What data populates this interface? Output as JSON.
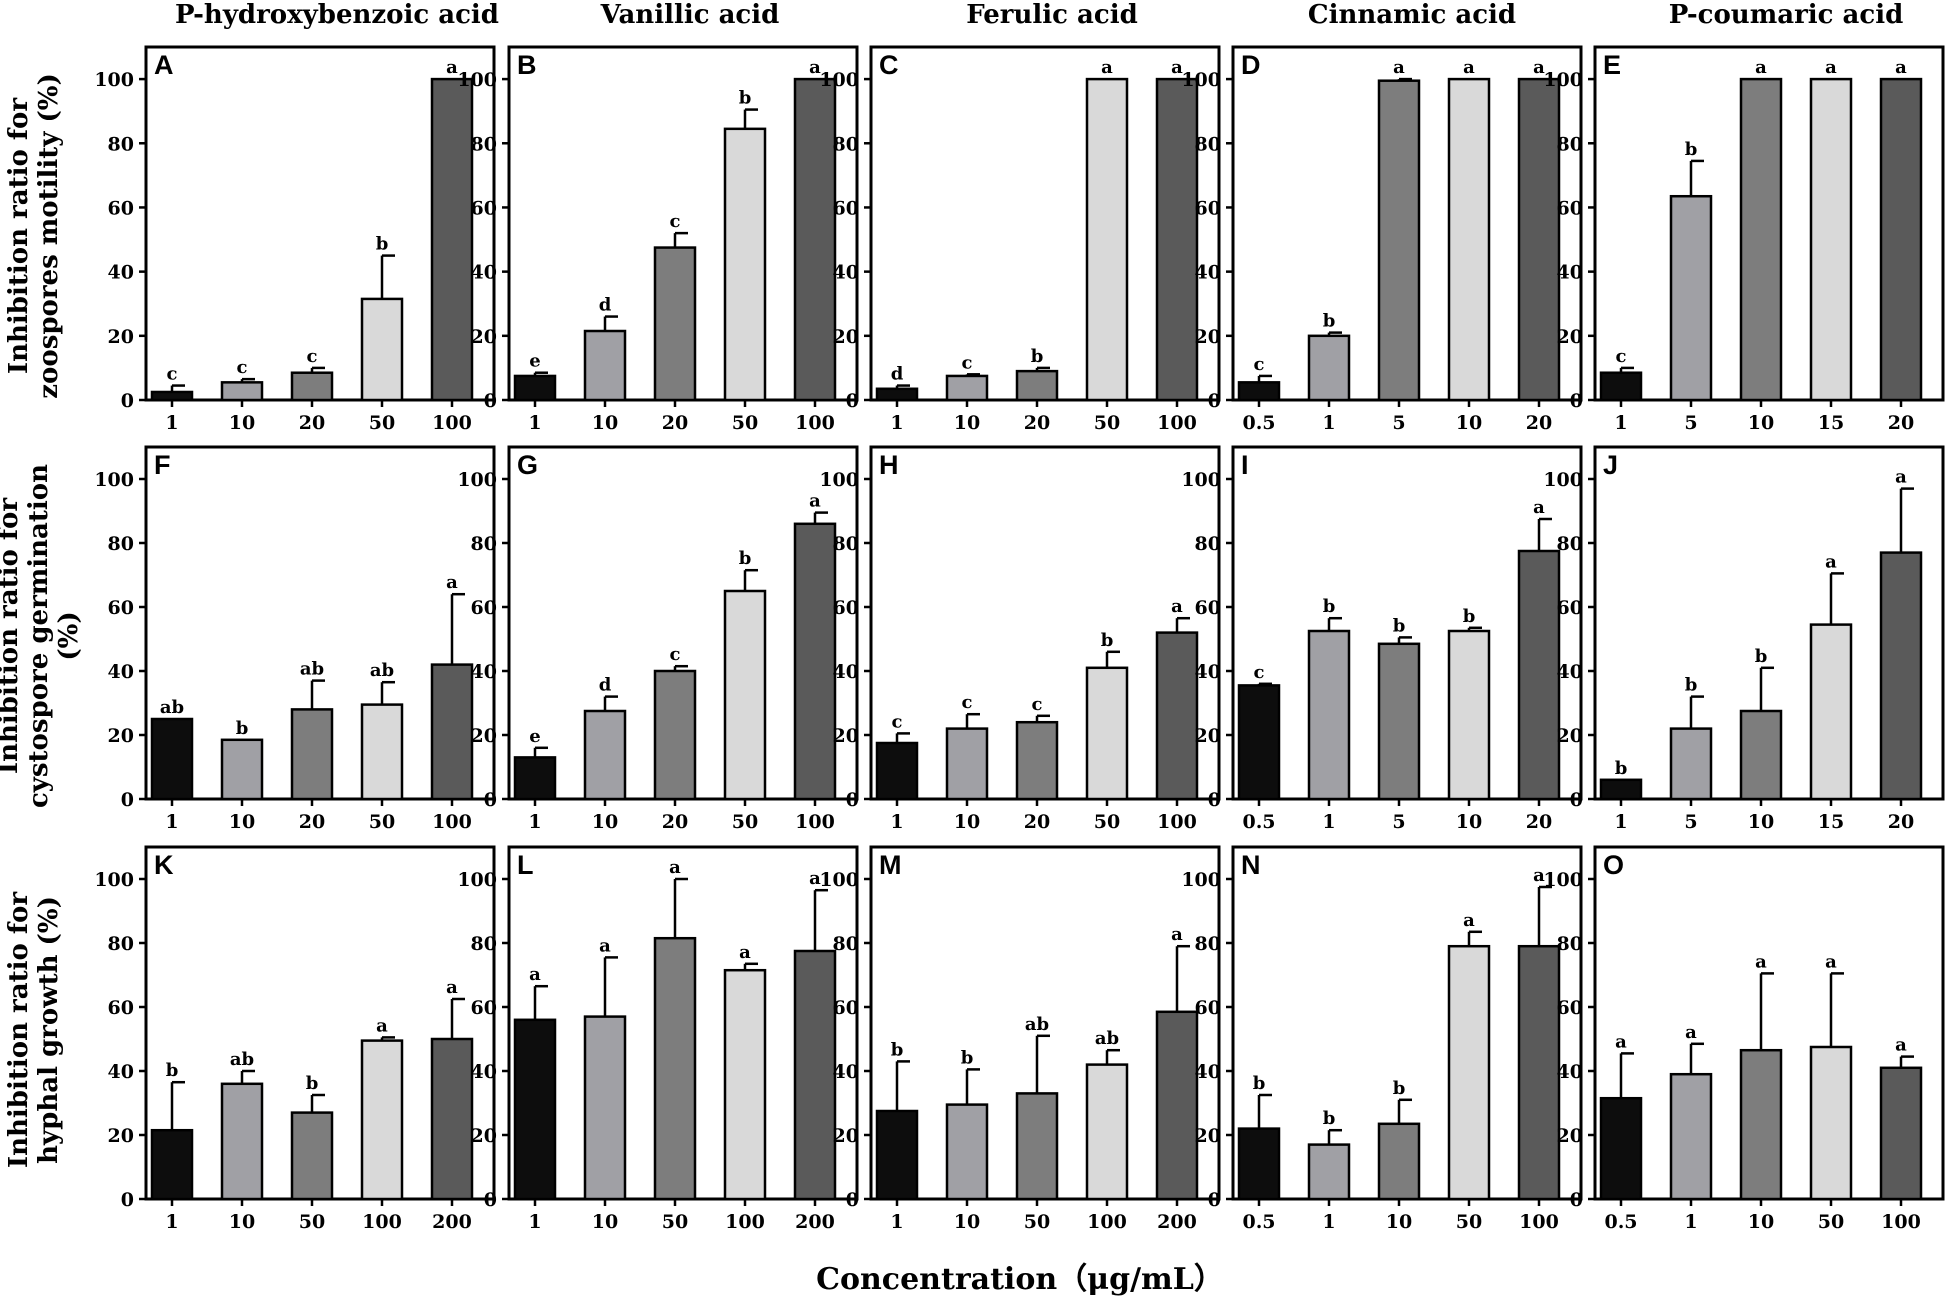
{
  "figure": {
    "x_axis_label": "Concentration（μg/mL）",
    "column_titles": [
      "P-hydroxybenzoic acid",
      "Vanillic acid",
      "Ferulic acid",
      "Cinnamic acid",
      "P-coumaric acid"
    ],
    "row_labels": [
      [
        "Inhibition ratio for",
        "zoospores motility (%)"
      ],
      [
        "Inhibition ratio for",
        "cystospore germination",
        "(%)"
      ],
      [
        "Inhibition ratio for",
        "hyphal growth (%)"
      ]
    ]
  },
  "colors": {
    "bar_fills": [
      "#0d0d0d",
      "#a0a0a5",
      "#7d7d7d",
      "#d9d9d9",
      "#5a5a5a"
    ],
    "axis": "#000000"
  },
  "chart_data": [
    {
      "panel": "A",
      "type": "bar",
      "compound": "P-hydroxybenzoic acid",
      "categories": [
        "1",
        "10",
        "20",
        "50",
        "100"
      ],
      "values": [
        2.5,
        5.5,
        8.5,
        31.5,
        100
      ],
      "errors": [
        2.0,
        1.0,
        1.5,
        13.5,
        0
      ],
      "letters": [
        "c",
        "c",
        "c",
        "b",
        "a"
      ],
      "ylim": [
        0,
        110
      ],
      "yticks": [
        0,
        20,
        40,
        60,
        80,
        100
      ]
    },
    {
      "panel": "B",
      "type": "bar",
      "compound": "Vanillic acid",
      "categories": [
        "1",
        "10",
        "20",
        "50",
        "100"
      ],
      "values": [
        7.5,
        21.5,
        47.5,
        84.5,
        100
      ],
      "errors": [
        1.0,
        4.5,
        4.5,
        6.0,
        0
      ],
      "letters": [
        "e",
        "d",
        "c",
        "b",
        "a"
      ],
      "ylim": [
        0,
        110
      ],
      "yticks": [
        0,
        20,
        40,
        60,
        80,
        100
      ]
    },
    {
      "panel": "C",
      "type": "bar",
      "compound": "Ferulic acid",
      "categories": [
        "1",
        "10",
        "20",
        "50",
        "100"
      ],
      "values": [
        3.5,
        7.5,
        9.0,
        100,
        100
      ],
      "errors": [
        1.0,
        0.5,
        1.0,
        0,
        0
      ],
      "letters": [
        "d",
        "c",
        "b",
        "a",
        "a"
      ],
      "ylim": [
        0,
        110
      ],
      "yticks": [
        0,
        20,
        40,
        60,
        80,
        100
      ]
    },
    {
      "panel": "D",
      "type": "bar",
      "compound": "Cinnamic acid",
      "categories": [
        "0.5",
        "1",
        "5",
        "10",
        "20"
      ],
      "values": [
        5.5,
        20.0,
        99.5,
        100,
        100
      ],
      "errors": [
        2.0,
        1.0,
        0.5,
        0,
        0
      ],
      "letters": [
        "c",
        "b",
        "a",
        "a",
        "a"
      ],
      "ylim": [
        0,
        110
      ],
      "yticks": [
        0,
        20,
        40,
        60,
        80,
        100
      ]
    },
    {
      "panel": "E",
      "type": "bar",
      "compound": "P-coumaric acid",
      "categories": [
        "1",
        "5",
        "10",
        "15",
        "20"
      ],
      "values": [
        8.5,
        63.5,
        100,
        100,
        100
      ],
      "errors": [
        1.5,
        11.0,
        0,
        0,
        0
      ],
      "letters": [
        "c",
        "b",
        "a",
        "a",
        "a"
      ],
      "ylim": [
        0,
        110
      ],
      "yticks": [
        0,
        20,
        40,
        60,
        80,
        100
      ]
    },
    {
      "panel": "F",
      "type": "bar",
      "compound": "P-hydroxybenzoic acid",
      "categories": [
        "1",
        "10",
        "20",
        "50",
        "100"
      ],
      "values": [
        25.0,
        18.5,
        28.0,
        29.5,
        42.0
      ],
      "errors": [
        0,
        0,
        9.0,
        7.0,
        22.0
      ],
      "letters": [
        "ab",
        "b",
        "ab",
        "ab",
        "a"
      ],
      "ylim": [
        0,
        110
      ],
      "yticks": [
        0,
        20,
        40,
        60,
        80,
        100
      ]
    },
    {
      "panel": "G",
      "type": "bar",
      "compound": "Vanillic acid",
      "categories": [
        "1",
        "10",
        "20",
        "50",
        "100"
      ],
      "values": [
        13.0,
        27.5,
        40.0,
        65.0,
        86.0
      ],
      "errors": [
        3.0,
        4.5,
        1.5,
        6.5,
        3.5
      ],
      "letters": [
        "e",
        "d",
        "c",
        "b",
        "a"
      ],
      "ylim": [
        0,
        110
      ],
      "yticks": [
        0,
        20,
        40,
        60,
        80,
        100
      ]
    },
    {
      "panel": "H",
      "type": "bar",
      "compound": "Ferulic acid",
      "categories": [
        "1",
        "10",
        "20",
        "50",
        "100"
      ],
      "values": [
        17.5,
        22.0,
        24.0,
        41.0,
        52.0
      ],
      "errors": [
        3.0,
        4.5,
        2.0,
        5.0,
        4.5
      ],
      "letters": [
        "c",
        "c",
        "c",
        "b",
        "a"
      ],
      "ylim": [
        0,
        110
      ],
      "yticks": [
        0,
        20,
        40,
        60,
        80,
        100
      ]
    },
    {
      "panel": "I",
      "type": "bar",
      "compound": "Cinnamic acid",
      "categories": [
        "0.5",
        "1",
        "5",
        "10",
        "20"
      ],
      "values": [
        35.5,
        52.5,
        48.5,
        52.5,
        77.5
      ],
      "errors": [
        0.5,
        4.0,
        2.0,
        1.0,
        10.0
      ],
      "letters": [
        "c",
        "b",
        "b",
        "b",
        "a"
      ],
      "ylim": [
        0,
        110
      ],
      "yticks": [
        0,
        20,
        40,
        60,
        80,
        100
      ]
    },
    {
      "panel": "J",
      "type": "bar",
      "compound": "P-coumaric acid",
      "categories": [
        "1",
        "5",
        "10",
        "15",
        "20"
      ],
      "values": [
        6.0,
        22.0,
        27.5,
        54.5,
        77.0
      ],
      "errors": [
        0,
        10.0,
        13.5,
        16.0,
        20.0
      ],
      "letters": [
        "b",
        "b",
        "b",
        "a",
        "a"
      ],
      "ylim": [
        0,
        110
      ],
      "yticks": [
        0,
        20,
        40,
        60,
        80,
        100
      ]
    },
    {
      "panel": "K",
      "type": "bar",
      "compound": "P-hydroxybenzoic acid",
      "categories": [
        "1",
        "10",
        "50",
        "100",
        "200"
      ],
      "values": [
        21.5,
        36.0,
        27.0,
        49.5,
        50.0
      ],
      "errors": [
        15.0,
        4.0,
        5.5,
        1.0,
        12.5
      ],
      "letters": [
        "b",
        "ab",
        "b",
        "a",
        "a"
      ],
      "ylim": [
        0,
        110
      ],
      "yticks": [
        0,
        20,
        40,
        60,
        80,
        100
      ]
    },
    {
      "panel": "L",
      "type": "bar",
      "compound": "Vanillic acid",
      "categories": [
        "1",
        "10",
        "50",
        "100",
        "200"
      ],
      "values": [
        56.0,
        57.0,
        81.5,
        71.5,
        77.5
      ],
      "errors": [
        10.5,
        18.5,
        18.5,
        2.0,
        19.0
      ],
      "letters": [
        "a",
        "a",
        "a",
        "a",
        "a"
      ],
      "ylim": [
        0,
        110
      ],
      "yticks": [
        0,
        20,
        40,
        60,
        80,
        100
      ]
    },
    {
      "panel": "M",
      "type": "bar",
      "compound": "Ferulic acid",
      "categories": [
        "1",
        "10",
        "50",
        "100",
        "200"
      ],
      "values": [
        27.5,
        29.5,
        33.0,
        42.0,
        58.5
      ],
      "errors": [
        15.5,
        11.0,
        18.0,
        4.5,
        20.5
      ],
      "letters": [
        "b",
        "b",
        "ab",
        "ab",
        "a"
      ],
      "ylim": [
        0,
        110
      ],
      "yticks": [
        0,
        20,
        40,
        60,
        80,
        100
      ]
    },
    {
      "panel": "N",
      "type": "bar",
      "compound": "Cinnamic acid",
      "categories": [
        "0.5",
        "1",
        "10",
        "50",
        "100"
      ],
      "values": [
        22.0,
        17.0,
        23.5,
        79.0,
        79.0
      ],
      "errors": [
        10.5,
        4.5,
        7.5,
        4.5,
        18.5
      ],
      "letters": [
        "b",
        "b",
        "b",
        "a",
        "a"
      ],
      "ylim": [
        0,
        110
      ],
      "yticks": [
        0,
        20,
        40,
        60,
        80,
        100
      ]
    },
    {
      "panel": "O",
      "type": "bar",
      "compound": "P-coumaric acid",
      "categories": [
        "0.5",
        "1",
        "10",
        "50",
        "100"
      ],
      "values": [
        31.5,
        39.0,
        46.5,
        47.5,
        41.0
      ],
      "errors": [
        14.0,
        9.5,
        24.0,
        23.0,
        3.5
      ],
      "letters": [
        "a",
        "a",
        "a",
        "a",
        "a"
      ],
      "ylim": [
        0,
        110
      ],
      "yticks": [
        0,
        20,
        40,
        60,
        80,
        100
      ]
    }
  ]
}
